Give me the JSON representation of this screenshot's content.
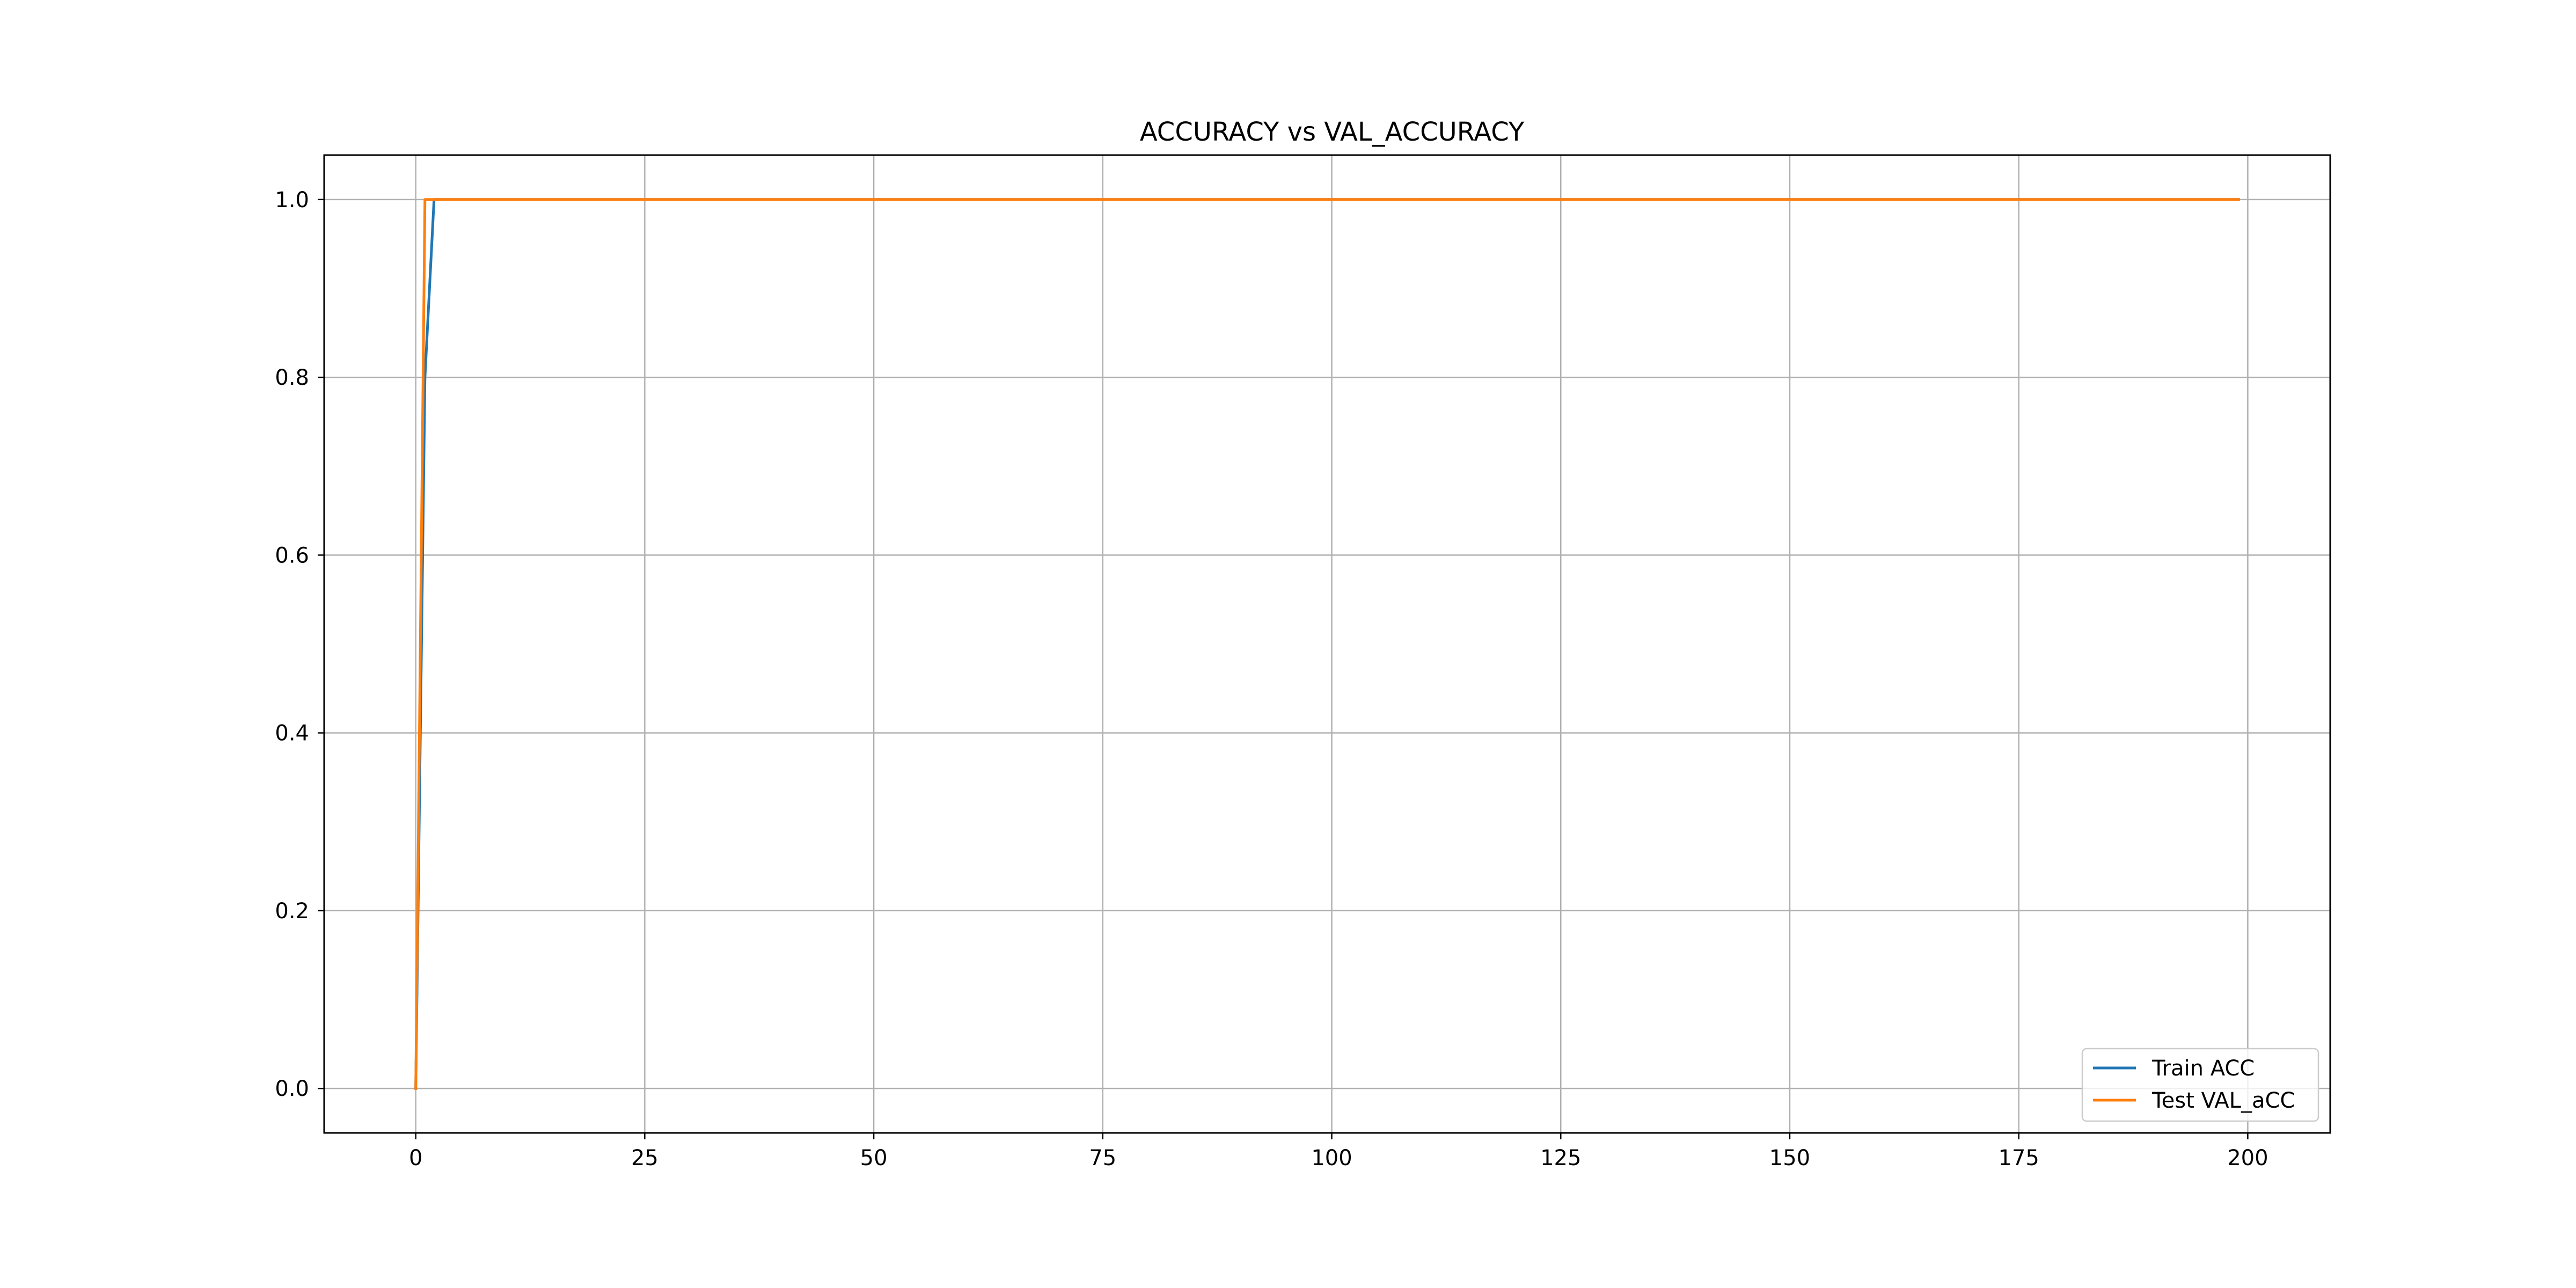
{
  "chart_data": {
    "type": "line",
    "title": "ACCURACY vs VAL_ACCURACY",
    "xlabel": "",
    "ylabel": "",
    "xlim": [
      -10,
      209
    ],
    "ylim": [
      -0.05,
      1.05
    ],
    "xticks": [
      0,
      25,
      50,
      75,
      100,
      125,
      150,
      175,
      200
    ],
    "yticks": [
      0.0,
      0.2,
      0.4,
      0.6,
      0.8,
      1.0
    ],
    "xtick_labels": [
      "0",
      "25",
      "50",
      "75",
      "100",
      "125",
      "150",
      "175",
      "200"
    ],
    "ytick_labels": [
      "0.0",
      "0.2",
      "0.4",
      "0.6",
      "0.8",
      "1.0"
    ],
    "grid": true,
    "legend_position": "lower-right",
    "series": [
      {
        "name": "Train ACC",
        "color": "#1f77b4",
        "x": [
          0,
          1,
          2,
          199
        ],
        "y": [
          0.0,
          0.8,
          1.0,
          1.0
        ]
      },
      {
        "name": "Test VAL_aCC",
        "color": "#ff7f0e",
        "x": [
          0,
          1,
          199
        ],
        "y": [
          0.0,
          1.0,
          1.0
        ]
      }
    ]
  }
}
